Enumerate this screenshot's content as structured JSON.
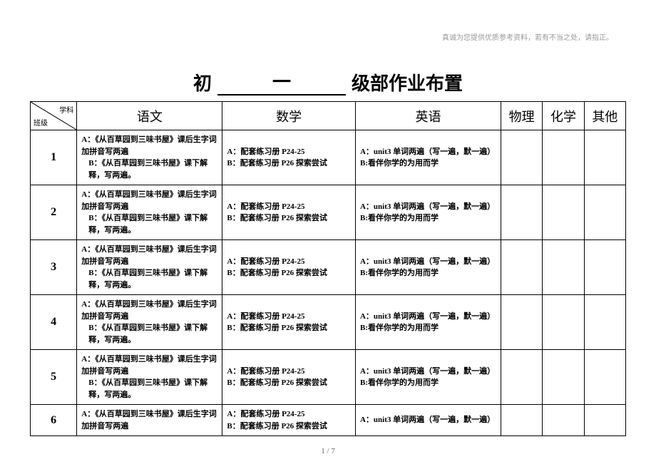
{
  "header_note": "真诚为您提供优质参考资料，若有不当之处，请指正。",
  "title_prefix": "初",
  "title_grade": "一",
  "title_suffix": "级部作业布置",
  "corner_top": "学科",
  "corner_bottom": "班级",
  "columns": {
    "chinese": "语文",
    "math": "数学",
    "english": "英语",
    "physics": "物理",
    "chemistry": "化学",
    "other": "其他"
  },
  "rows": [
    {
      "num": "1",
      "chinese_a": "A：《从百草园到三味书屋》课后生字词加拼音写两遍",
      "chinese_b": "B：《从百草园到三味书屋》课下解释，写两遍。",
      "math_a": "A：配套练习册 P24-25",
      "math_b": "B：配套练习册 P26 探索尝试",
      "english_a": "A：unit3 单词两遍（写一遍，默一遍）",
      "english_b": "B:看伴你学的为用而学"
    },
    {
      "num": "2",
      "chinese_a": "A：《从百草园到三味书屋》课后生字词加拼音写两遍",
      "chinese_b": "B：《从百草园到三味书屋》课下解释，写两遍。",
      "math_a": "A：配套练习册 P24-25",
      "math_b": "B：配套练习册 P26 探索尝试",
      "english_a": "A：unit3 单词两遍（写一遍，默一遍）",
      "english_b": "B:看伴你学的为用而学"
    },
    {
      "num": "3",
      "chinese_a": "A：《从百草园到三味书屋》课后生字词加拼音写两遍",
      "chinese_b": "B：《从百草园到三味书屋》课下解释，写两遍。",
      "math_a": "A：配套练习册 P24-25",
      "math_b": "B：配套练习册 P26 探索尝试",
      "english_a": "A：unit3 单词两遍（写一遍，默一遍）",
      "english_b": "B:看伴你学的为用而学"
    },
    {
      "num": "4",
      "chinese_a": "A：《从百草园到三味书屋》课后生字词加拼音写两遍",
      "chinese_b": "B：《从百草园到三味书屋》课下解释，写两遍。",
      "math_a": "A：配套练习册 P24-25",
      "math_b": "B：配套练习册 P26 探索尝试",
      "english_a": "A：unit3 单词两遍（写一遍，默一遍）",
      "english_b": "B:看伴你学的为用而学"
    },
    {
      "num": "5",
      "chinese_a": "A：《从百草园到三味书屋》课后生字词加拼音写两遍",
      "chinese_b": "B：《从百草园到三味书屋》课下解释，写两遍。",
      "math_a": "A：配套练习册 P24-25",
      "math_b": "B：配套练习册 P26 探索尝试",
      "english_a": "A：unit3 单词两遍（写一遍，默一遍）",
      "english_b": "B:看伴你学的为用而学"
    },
    {
      "num": "6",
      "chinese_a": "A：《从百草园到三味书屋》课后生字词加拼音写两遍",
      "chinese_b": "",
      "math_a": "A：配套练习册 P24-25",
      "math_b": "B：配套练习册 P26 探索尝试",
      "english_a": "A：unit3 单词两遍（写一遍，默一遍）",
      "english_b": ""
    }
  ],
  "footer": "1 / 7"
}
